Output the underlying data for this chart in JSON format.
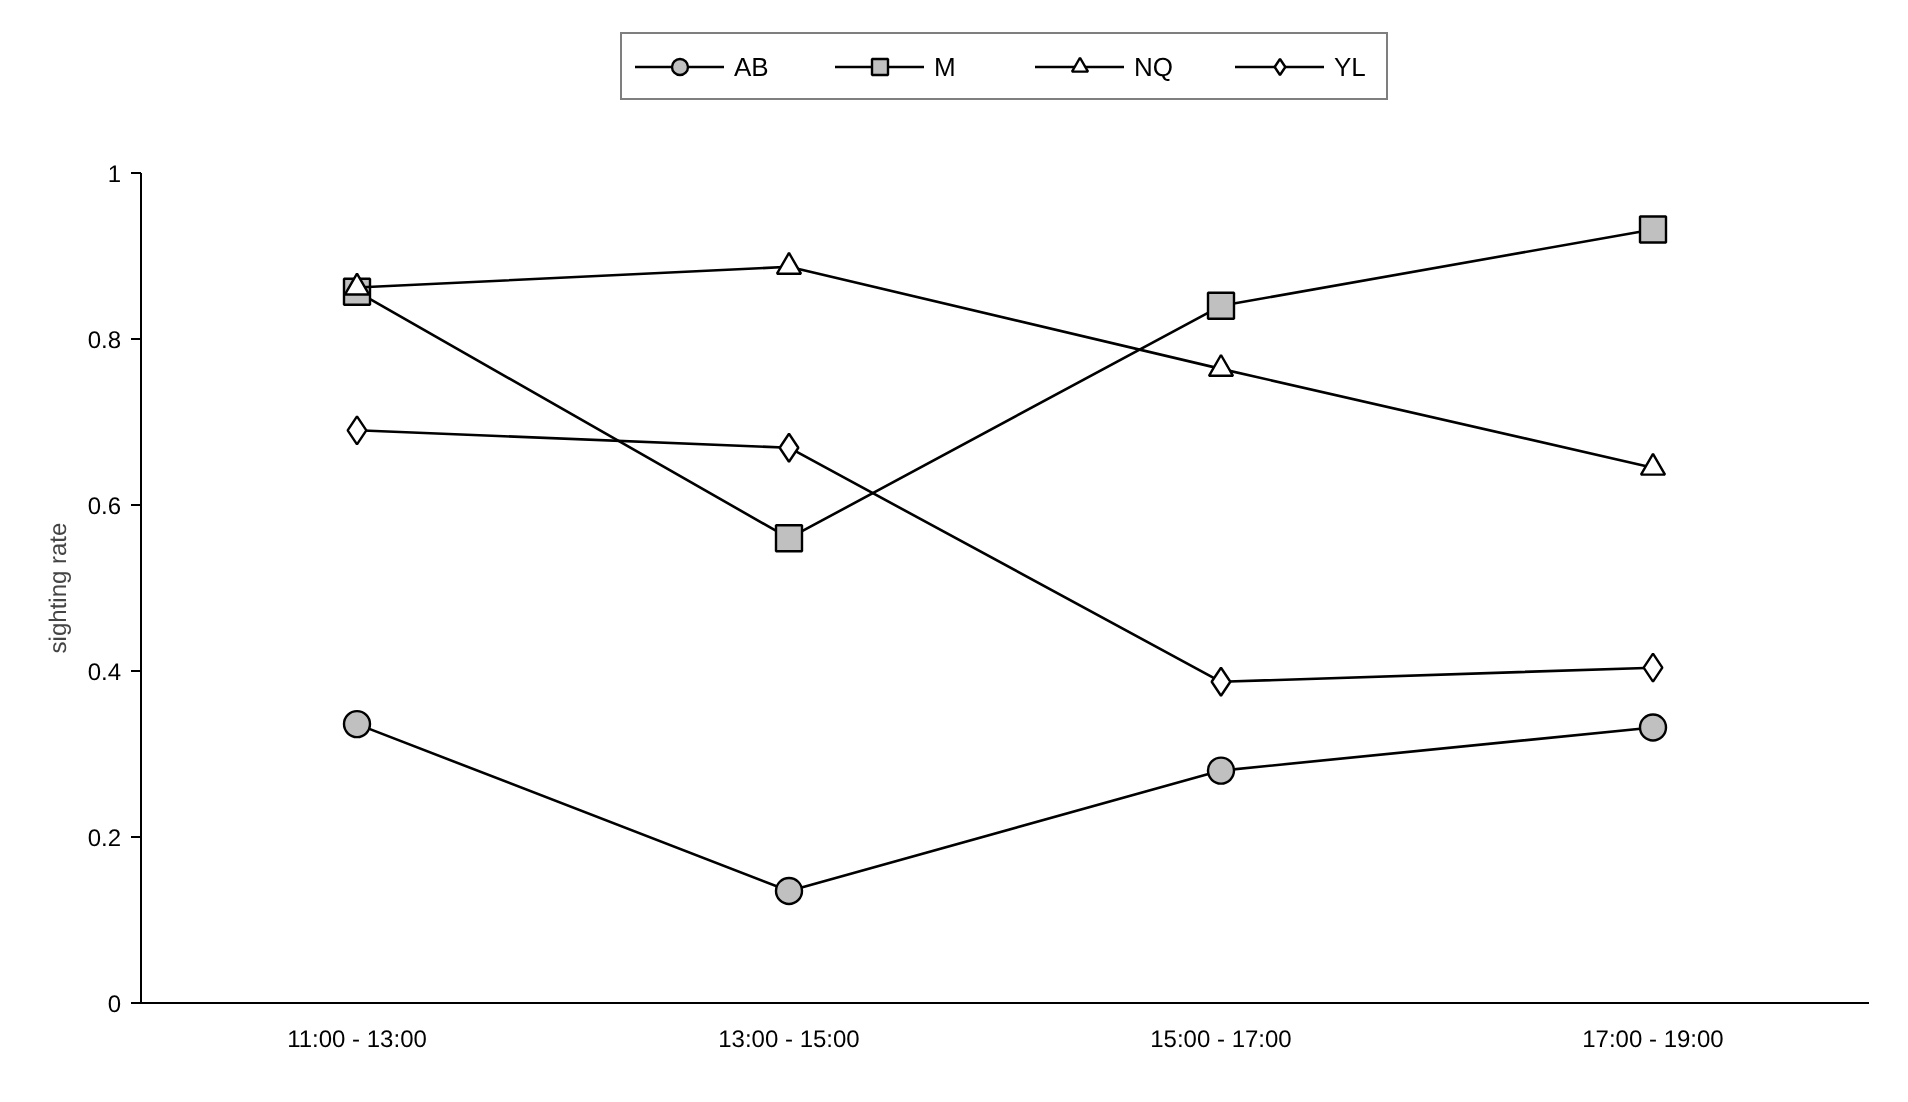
{
  "chart_data": {
    "type": "line",
    "ylabel": "sighting rate",
    "categories": [
      "11:00 - 13:00",
      "13:00 - 15:00",
      "15:00 - 17:00",
      "17:00 - 19:00"
    ],
    "ylim": [
      0,
      1
    ],
    "yticks": [
      0,
      0.2,
      0.4,
      0.6,
      0.8,
      1
    ],
    "grid": false,
    "legend": "top",
    "line_style": "solid",
    "series": [
      {
        "name": "AB",
        "color": "#c0c0c0",
        "marker": "circle",
        "values": [
          0.336,
          0.135,
          0.28,
          0.332
        ]
      },
      {
        "name": "M",
        "color": "#c0c0c0",
        "marker": "square",
        "values": [
          0.857,
          0.56,
          0.84,
          0.932
        ]
      },
      {
        "name": "NQ",
        "color": "#ffffff",
        "marker": "triangle",
        "values": [
          0.862,
          0.887,
          0.764,
          0.645
        ]
      },
      {
        "name": "YL",
        "color": "#ffffff",
        "marker": "diamond",
        "values": [
          0.69,
          0.669,
          0.387,
          0.404
        ]
      }
    ]
  }
}
